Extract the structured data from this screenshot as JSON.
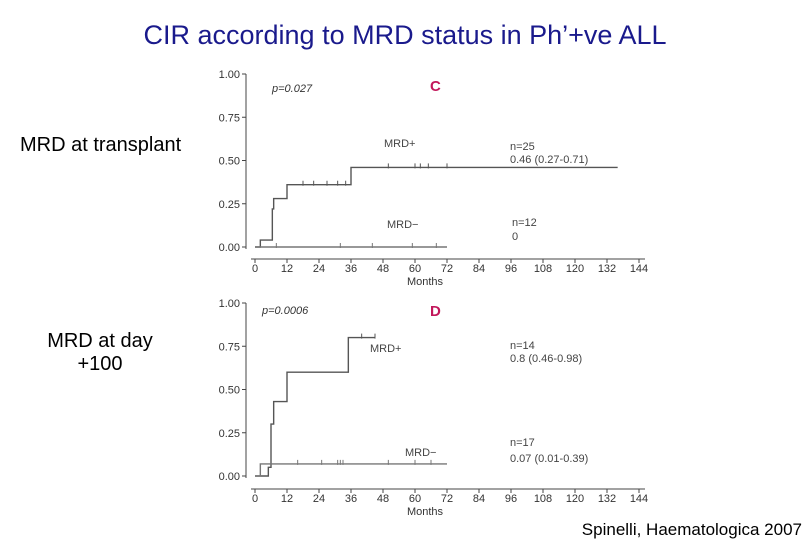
{
  "title": "CIR according to MRD status in Ph’+ve ALL",
  "citation": "Spinelli, Haematologica 2007",
  "labels": {
    "c": "MRD at transplant",
    "d_line1": "MRD at day",
    "d_line2": "+100"
  },
  "colors": {
    "title": "#1a1a8c",
    "panel_letter": "#c2185b",
    "curve_pos": "#555555",
    "curve_neg": "#777777"
  },
  "chart_data": [
    {
      "type": "line",
      "panel": "C",
      "p_value": "p=0.027",
      "xlabel": "Months",
      "ylabel": "",
      "xlim": [
        0,
        144
      ],
      "ylim": [
        0,
        1
      ],
      "xticks": [
        "0",
        "12",
        "24",
        "36",
        "48",
        "60",
        "72",
        "84",
        "96",
        "108",
        "120",
        "132",
        "144"
      ],
      "yticks": [
        "0.00",
        "0.25",
        "0.50",
        "0.75",
        "1.00"
      ],
      "series": [
        {
          "name": "MRD+",
          "label": "MRD+",
          "n": "n=25",
          "ci": "0.46 (0.27-0.71)",
          "steps": [
            [
              0,
              0
            ],
            [
              2,
              0.04
            ],
            [
              6,
              0.04
            ],
            [
              6.5,
              0.22
            ],
            [
              7,
              0.28
            ],
            [
              12,
              0.28
            ],
            [
              12,
              0.36
            ],
            [
              36,
              0.36
            ],
            [
              36,
              0.46
            ],
            [
              136,
              0.46
            ]
          ],
          "censor": [
            18,
            22,
            27,
            31,
            34,
            50,
            60,
            62,
            65,
            72
          ]
        },
        {
          "name": "MRD-",
          "label": "MRD−",
          "n": "n=12",
          "ci": "0",
          "steps": [
            [
              0,
              0
            ],
            [
              72,
              0
            ]
          ],
          "censor": [
            8,
            32,
            44,
            59,
            68
          ]
        }
      ]
    },
    {
      "type": "line",
      "panel": "D",
      "p_value": "p=0.0006",
      "xlabel": "Months",
      "ylabel": "",
      "xlim": [
        0,
        144
      ],
      "ylim": [
        0,
        1
      ],
      "xticks": [
        "0",
        "12",
        "24",
        "36",
        "48",
        "60",
        "72",
        "84",
        "96",
        "108",
        "120",
        "132",
        "144"
      ],
      "yticks": [
        "0.00",
        "0.25",
        "0.50",
        "0.75",
        "1.00"
      ],
      "series": [
        {
          "name": "MRD+",
          "label": "MRD+",
          "n": "n=14",
          "ci": "0.8 (0.46-0.98)",
          "steps": [
            [
              0,
              0
            ],
            [
              5,
              0.05
            ],
            [
              6,
              0.05
            ],
            [
              6,
              0.3
            ],
            [
              7,
              0.43
            ],
            [
              12,
              0.43
            ],
            [
              12,
              0.6
            ],
            [
              35,
              0.6
            ],
            [
              35,
              0.8
            ],
            [
              45,
              0.8
            ]
          ],
          "censor": [
            40,
            45
          ]
        },
        {
          "name": "MRD-",
          "label": "MRD−",
          "n": "n=17",
          "ci": "0.07 (0.01-0.39)",
          "steps": [
            [
              0,
              0
            ],
            [
              2,
              0.07
            ],
            [
              72,
              0.07
            ]
          ],
          "censor": [
            16,
            25,
            31,
            32,
            33,
            50,
            60,
            66
          ]
        }
      ]
    }
  ]
}
